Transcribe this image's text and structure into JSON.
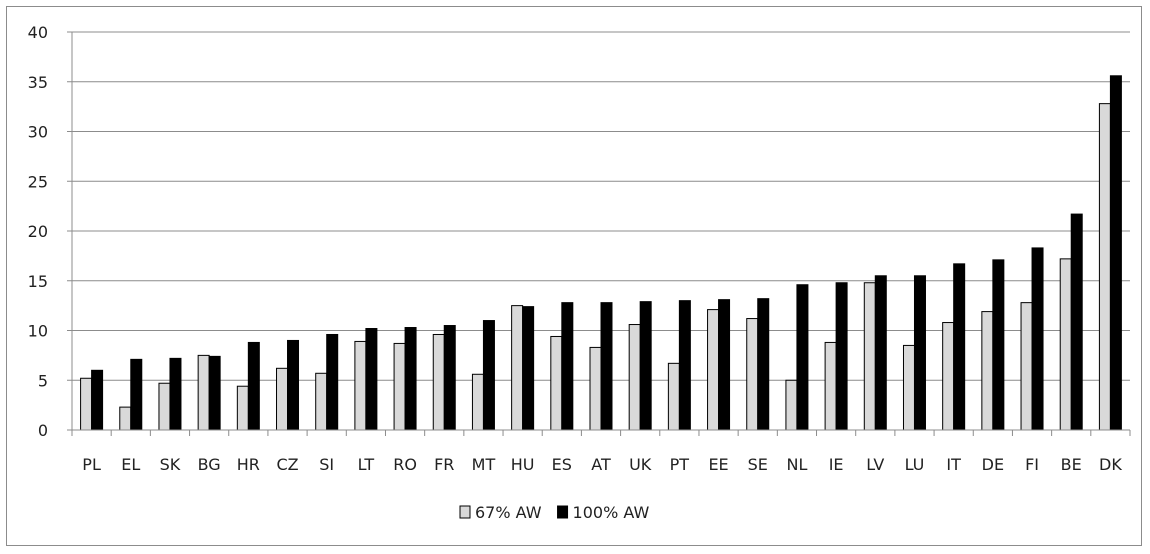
{
  "chart_data": {
    "type": "bar",
    "title": "",
    "xlabel": "",
    "ylabel": "",
    "ylim": [
      0,
      40
    ],
    "yticks": [
      0,
      5,
      10,
      15,
      20,
      25,
      30,
      35,
      40
    ],
    "grid": true,
    "legend_position": "bottom",
    "categories": [
      "PL",
      "EL",
      "SK",
      "BG",
      "HR",
      "CZ",
      "SI",
      "LT",
      "RO",
      "FR",
      "MT",
      "HU",
      "ES",
      "AT",
      "UK",
      "PT",
      "EE",
      "SE",
      "NL",
      "IE",
      "LV",
      "LU",
      "IT",
      "DE",
      "FI",
      "BE",
      "DK"
    ],
    "series": [
      {
        "name": "67% AW",
        "color": "#d9d9d9",
        "values": [
          5.2,
          2.3,
          4.7,
          7.5,
          4.4,
          6.2,
          5.7,
          8.9,
          8.7,
          9.6,
          5.6,
          12.5,
          9.4,
          8.3,
          10.6,
          6.7,
          12.1,
          11.2,
          5.0,
          8.8,
          14.8,
          8.5,
          10.8,
          11.9,
          12.8,
          17.2,
          32.8
        ]
      },
      {
        "name": "100% AW",
        "color": "#000000",
        "values": [
          6.0,
          7.1,
          7.2,
          7.4,
          8.8,
          9.0,
          9.6,
          10.2,
          10.3,
          10.5,
          11.0,
          12.4,
          12.8,
          12.8,
          12.9,
          13.0,
          13.1,
          13.2,
          14.6,
          14.8,
          15.5,
          15.5,
          16.7,
          17.1,
          18.3,
          21.7,
          35.6
        ]
      }
    ]
  }
}
